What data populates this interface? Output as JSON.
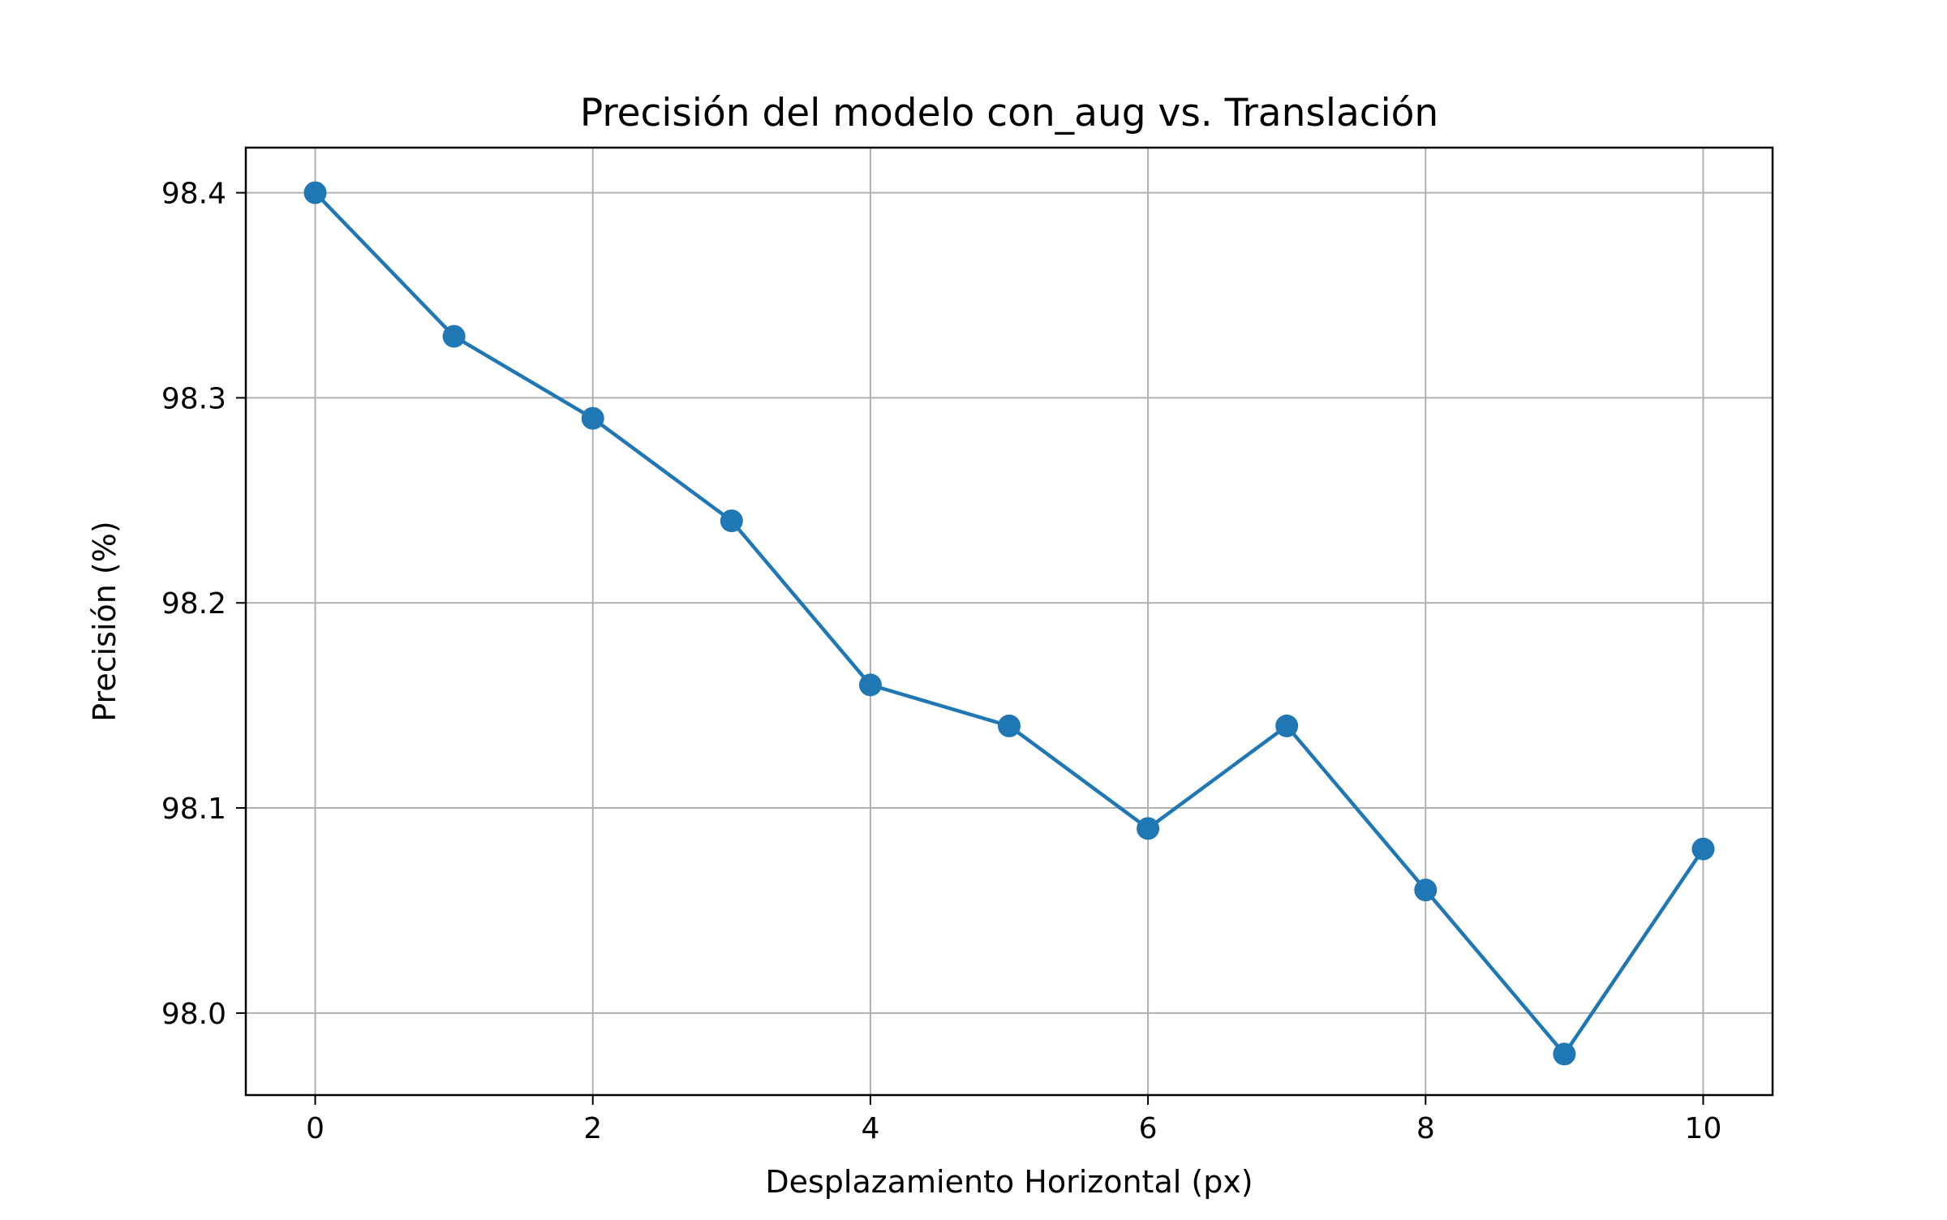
{
  "chart_data": {
    "type": "line",
    "title": "Precisión del modelo con_aug vs. Translación",
    "xlabel": "Desplazamiento Horizontal (px)",
    "ylabel": "Precisión (%)",
    "xlim": [
      -0.5,
      10.5
    ],
    "ylim": [
      97.96,
      98.422
    ],
    "xticks": [
      0,
      2,
      4,
      6,
      8,
      10
    ],
    "xtick_labels": [
      "0",
      "2",
      "4",
      "6",
      "8",
      "10"
    ],
    "yticks": [
      98.0,
      98.1,
      98.2,
      98.3,
      98.4
    ],
    "ytick_labels": [
      "98.0",
      "98.1",
      "98.2",
      "98.3",
      "98.4"
    ],
    "grid": true,
    "series": [
      {
        "color": "#1f77b4",
        "marker": "circle",
        "x": [
          0,
          1,
          2,
          3,
          4,
          5,
          6,
          7,
          8,
          9,
          10
        ],
        "y": [
          98.4,
          98.33,
          98.29,
          98.24,
          98.16,
          98.14,
          98.09,
          98.14,
          98.06,
          97.98,
          98.08
        ]
      }
    ]
  }
}
